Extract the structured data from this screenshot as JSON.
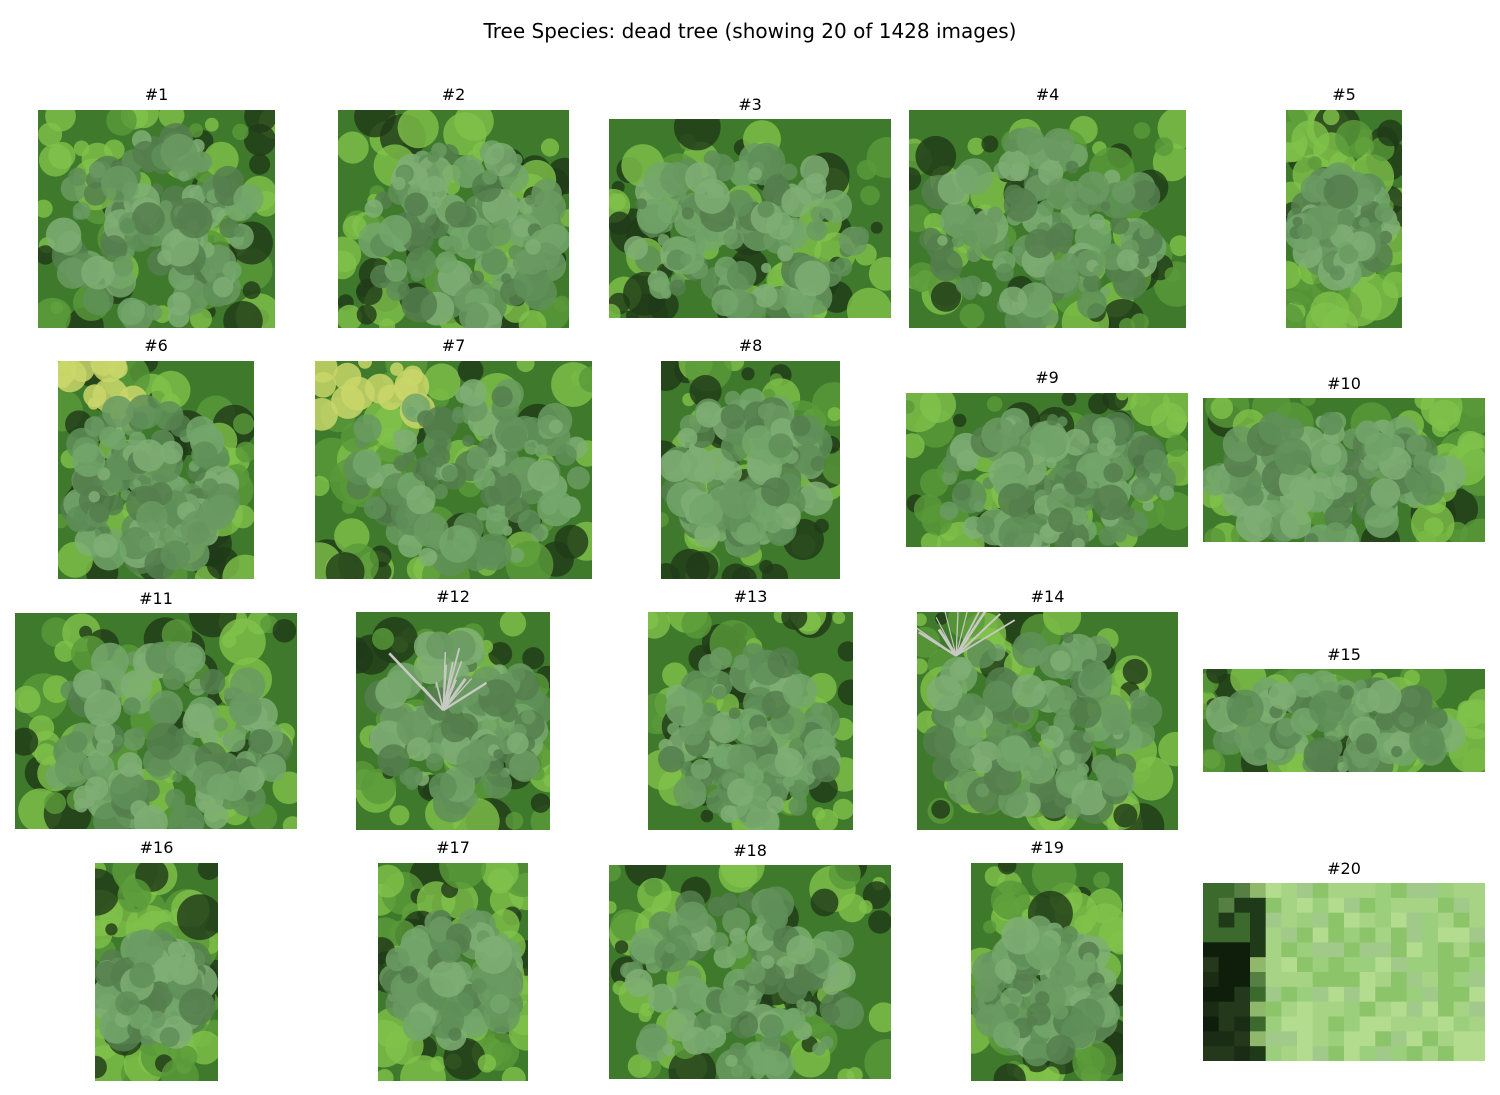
{
  "figure": {
    "title": "Tree Species: dead tree (showing 20 of 1428 images)"
  },
  "tiles": [
    {
      "label": "#1",
      "scene": "green tree crown aerial view, bright green foliage around edges"
    },
    {
      "label": "#2",
      "scene": "green tree crown aerial view, bright green and dark foliage"
    },
    {
      "label": "#3",
      "scene": "green tree crown aerial view, dark shadows at right"
    },
    {
      "label": "#4",
      "scene": "green tree crown aerial view, dark upper right"
    },
    {
      "label": "#5",
      "scene": "narrow crop of dark foliage with green crown at bottom"
    },
    {
      "label": "#6",
      "scene": "green tree crown with yellow foliage at top left"
    },
    {
      "label": "#7",
      "scene": "green tree crown with yellow-green foliage at top"
    },
    {
      "label": "#8",
      "scene": "green tree crown aerial view, bright green edges"
    },
    {
      "label": "#9",
      "scene": "dark green foliage, lighter crown at left"
    },
    {
      "label": "#10",
      "scene": "green crown with bright foliage at upper right"
    },
    {
      "label": "#11",
      "scene": "green tree crown surrounded by bright green foliage"
    },
    {
      "label": "#12",
      "scene": "grey bare branches above green crown"
    },
    {
      "label": "#13",
      "scene": "green tree crown, dark patches"
    },
    {
      "label": "#14",
      "scene": "grey dead branches at top left over green crown"
    },
    {
      "label": "#15",
      "scene": "wide strip of green foliage"
    },
    {
      "label": "#16",
      "scene": "tall narrow green crown"
    },
    {
      "label": "#17",
      "scene": "green crown with dark edges"
    },
    {
      "label": "#18",
      "scene": "green tree crown, bright edges"
    },
    {
      "label": "#19",
      "scene": "tall green crown with bright foliage at top"
    },
    {
      "label": "#20",
      "scene": "pixelated low-resolution light green patch, dark left columns"
    }
  ],
  "colors": {
    "background": "#ffffff",
    "crown": "#6a9a62",
    "bright_foliage": "#7fc24a",
    "dark_shadow": "#1f3a18",
    "yellow_foliage": "#c9d66a",
    "dead_branches": "#c8c8c4"
  }
}
